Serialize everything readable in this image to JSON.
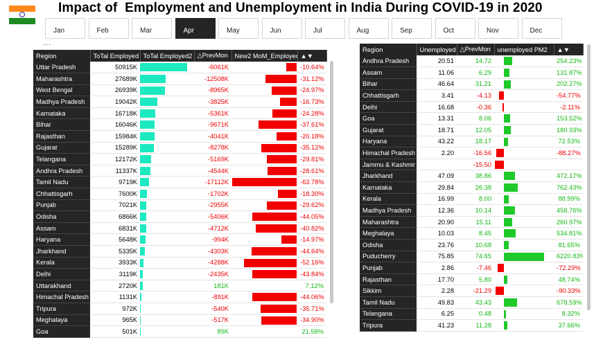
{
  "title": "Impact of  Employment and Unemployment in India During COVID-19 in 2020",
  "months": [
    "Jan",
    "Feb",
    "Mar",
    "Apr",
    "May",
    "Jun",
    "Jul",
    "Aug",
    "Sep",
    "Oct",
    "Nov",
    "Dec"
  ],
  "selected_month": "Apr",
  "more_options": "...",
  "colors": {
    "teal": "#1de9c0",
    "red": "#f20000",
    "green": "#20c92a",
    "header": "#252525"
  },
  "employed_table": {
    "headers": [
      "Region",
      "ToTal Employed",
      "ToTal Employed2",
      "△PrevMon",
      "New2 MoM_Employed",
      "▲▼"
    ],
    "sort_icon": "sort-desc-icon",
    "rows": [
      {
        "region": "Uttar Pradesh",
        "total": "50915K",
        "total_val": 50915,
        "prev": "-6061K",
        "mom": "-10.64%",
        "mom_val": -10.64
      },
      {
        "region": "Maharashtra",
        "total": "27689K",
        "total_val": 27689,
        "prev": "-12508K",
        "mom": "-31.12%",
        "mom_val": -31.12
      },
      {
        "region": "West Bengal",
        "total": "26939K",
        "total_val": 26939,
        "prev": "-8965K",
        "mom": "-24.97%",
        "mom_val": -24.97
      },
      {
        "region": "Madhya Pradesh",
        "total": "19042K",
        "total_val": 19042,
        "prev": "-3825K",
        "mom": "-16.73%",
        "mom_val": -16.73
      },
      {
        "region": "Karnataka",
        "total": "16718K",
        "total_val": 16718,
        "prev": "-5361K",
        "mom": "-24.28%",
        "mom_val": -24.28
      },
      {
        "region": "Bihar",
        "total": "16046K",
        "total_val": 16046,
        "prev": "-9671K",
        "mom": "-37.61%",
        "mom_val": -37.61
      },
      {
        "region": "Rajasthan",
        "total": "15984K",
        "total_val": 15984,
        "prev": "-4041K",
        "mom": "-20.18%",
        "mom_val": -20.18
      },
      {
        "region": "Gujarat",
        "total": "15289K",
        "total_val": 15289,
        "prev": "-8278K",
        "mom": "-35.12%",
        "mom_val": -35.12
      },
      {
        "region": "Telangana",
        "total": "12172K",
        "total_val": 12172,
        "prev": "-5169K",
        "mom": "-29.81%",
        "mom_val": -29.81
      },
      {
        "region": "Andhra Pradesh",
        "total": "11337K",
        "total_val": 11337,
        "prev": "-4544K",
        "mom": "-28.61%",
        "mom_val": -28.61
      },
      {
        "region": "Tamil Nadu",
        "total": "9719K",
        "total_val": 9719,
        "prev": "-17112K",
        "mom": "-63.78%",
        "mom_val": -63.78
      },
      {
        "region": "Chhattisgarh",
        "total": "7600K",
        "total_val": 7600,
        "prev": "-1702K",
        "mom": "-18.30%",
        "mom_val": -18.3
      },
      {
        "region": "Punjab",
        "total": "7021K",
        "total_val": 7021,
        "prev": "-2955K",
        "mom": "-29.62%",
        "mom_val": -29.62
      },
      {
        "region": "Odisha",
        "total": "6866K",
        "total_val": 6866,
        "prev": "-5406K",
        "mom": "-44.05%",
        "mom_val": -44.05
      },
      {
        "region": "Assam",
        "total": "6831K",
        "total_val": 6831,
        "prev": "-4712K",
        "mom": "-40.82%",
        "mom_val": -40.82
      },
      {
        "region": "Haryana",
        "total": "5648K",
        "total_val": 5648,
        "prev": "-994K",
        "mom": "-14.97%",
        "mom_val": -14.97
      },
      {
        "region": "Jharkhand",
        "total": "5335K",
        "total_val": 5335,
        "prev": "-4303K",
        "mom": "-44.64%",
        "mom_val": -44.64
      },
      {
        "region": "Kerala",
        "total": "3933K",
        "total_val": 3933,
        "prev": "-4288K",
        "mom": "-52.16%",
        "mom_val": -52.16
      },
      {
        "region": "Delhi",
        "total": "3119K",
        "total_val": 3119,
        "prev": "-2435K",
        "mom": "-43.84%",
        "mom_val": -43.84
      },
      {
        "region": "Uttarakhand",
        "total": "2720K",
        "total_val": 2720,
        "prev": "181K",
        "mom": "7.12%",
        "mom_val": 7.12
      },
      {
        "region": "Himachal Pradesh",
        "total": "1131K",
        "total_val": 1131,
        "prev": "-891K",
        "mom": "-44.06%",
        "mom_val": -44.06
      },
      {
        "region": "Tripura",
        "total": "972K",
        "total_val": 972,
        "prev": "-540K",
        "mom": "-35.71%",
        "mom_val": -35.71
      },
      {
        "region": "Meghalaya",
        "total": "965K",
        "total_val": 965,
        "prev": "-517K",
        "mom": "-34.90%",
        "mom_val": -34.9
      },
      {
        "region": "Goa",
        "total": "501K",
        "total_val": 501,
        "prev": "89K",
        "mom": "21.58%",
        "mom_val": 21.58
      }
    ]
  },
  "unemployed_table": {
    "headers": [
      "Region",
      "Unemployed",
      "△PrevMon",
      "unemployed PM2",
      "▲▼"
    ],
    "sort_icon": "sort-desc-icon",
    "rows": [
      {
        "region": "Andhra Pradesh",
        "unemp": "20.51",
        "prev": "14.72",
        "pm": "254.23%",
        "pm_val": 254.23
      },
      {
        "region": "Assam",
        "unemp": "11.06",
        "prev": "6.29",
        "pm": "131.87%",
        "pm_val": 131.87
      },
      {
        "region": "Bihar",
        "unemp": "46.64",
        "prev": "31.21",
        "pm": "202.27%",
        "pm_val": 202.27
      },
      {
        "region": "Chhattisgarh",
        "unemp": "3.41",
        "prev": "-4.13",
        "pm": "-54.77%",
        "pm_val": -54.77
      },
      {
        "region": "Delhi",
        "unemp": "16.68",
        "prev": "-0.36",
        "pm": "-2.11%",
        "pm_val": -2.11
      },
      {
        "region": "Goa",
        "unemp": "13.31",
        "prev": "8.06",
        "pm": "153.52%",
        "pm_val": 153.52
      },
      {
        "region": "Gujarat",
        "unemp": "18.71",
        "prev": "12.05",
        "pm": "180.93%",
        "pm_val": 180.93
      },
      {
        "region": "Haryana",
        "unemp": "43.22",
        "prev": "18.17",
        "pm": "72.53%",
        "pm_val": 72.53
      },
      {
        "region": "Himachal Pradesh",
        "unemp": "2.20",
        "prev": "-16.56",
        "pm": "-88.27%",
        "pm_val": -88.27
      },
      {
        "region": "Jammu & Kashmir",
        "unemp": "",
        "prev": "-15.50",
        "pm": "",
        "pm_val": -100
      },
      {
        "region": "Jharkhand",
        "unemp": "47.09",
        "prev": "38.86",
        "pm": "472.17%",
        "pm_val": 472.17
      },
      {
        "region": "Karnataka",
        "unemp": "29.84",
        "prev": "26.38",
        "pm": "762.43%",
        "pm_val": 762.43
      },
      {
        "region": "Kerala",
        "unemp": "16.99",
        "prev": "8.00",
        "pm": "88.99%",
        "pm_val": 88.99
      },
      {
        "region": "Madhya Pradesh",
        "unemp": "12.36",
        "prev": "10.14",
        "pm": "456.76%",
        "pm_val": 456.76
      },
      {
        "region": "Maharashtra",
        "unemp": "20.90",
        "prev": "15.11",
        "pm": "260.97%",
        "pm_val": 260.97
      },
      {
        "region": "Meghalaya",
        "unemp": "10.03",
        "prev": "8.45",
        "pm": "534.81%",
        "pm_val": 534.81
      },
      {
        "region": "Odisha",
        "unemp": "23.76",
        "prev": "10.68",
        "pm": "81.65%",
        "pm_val": 81.65
      },
      {
        "region": "Puducherry",
        "unemp": "75.85",
        "prev": "74.65",
        "pm": "6220.83%",
        "pm_val": 6220.83
      },
      {
        "region": "Punjab",
        "unemp": "2.86",
        "prev": "-7.46",
        "pm": "-72.29%",
        "pm_val": -72.29
      },
      {
        "region": "Rajasthan",
        "unemp": "17.70",
        "prev": "5.80",
        "pm": "48.74%",
        "pm_val": 48.74
      },
      {
        "region": "Sikkim",
        "unemp": "2.28",
        "prev": "-21.29",
        "pm": "-90.33%",
        "pm_val": -90.33
      },
      {
        "region": "Tamil Nadu",
        "unemp": "49.83",
        "prev": "43.43",
        "pm": "678.59%",
        "pm_val": 678.59
      },
      {
        "region": "Telangana",
        "unemp": "6.25",
        "prev": "0.48",
        "pm": "8.32%",
        "pm_val": 8.32
      },
      {
        "region": "Tripura",
        "unemp": "41.23",
        "prev": "11.28",
        "pm": "37.66%",
        "pm_val": 37.66
      }
    ]
  }
}
